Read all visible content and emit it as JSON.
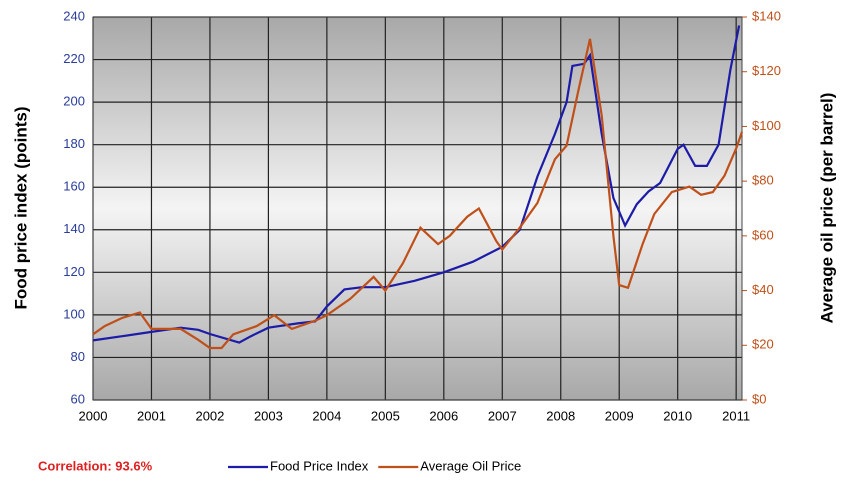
{
  "chart_data": {
    "type": "line",
    "ylabel": "Food price index (points)",
    "y2label": "Average oil price (per barrel)",
    "annotation": "Correlation: 93.6%",
    "xlim": [
      2000,
      2011.1
    ],
    "xticks": [
      2000,
      2001,
      2002,
      2003,
      2004,
      2005,
      2006,
      2007,
      2008,
      2009,
      2010,
      2011
    ],
    "ylim": [
      60,
      240
    ],
    "yticks": [
      60,
      80,
      100,
      120,
      140,
      160,
      180,
      200,
      220,
      240
    ],
    "y2lim": [
      0,
      140
    ],
    "y2ticks": [
      {
        "value": 0,
        "label": "$0"
      },
      {
        "value": 20,
        "label": "$20"
      },
      {
        "value": 40,
        "label": "$40"
      },
      {
        "value": 60,
        "label": "$60"
      },
      {
        "value": 80,
        "label": "$80"
      },
      {
        "value": 100,
        "label": "$100"
      },
      {
        "value": 120,
        "label": "$120"
      },
      {
        "value": 140,
        "label": "$140"
      }
    ],
    "grid": true,
    "legend": "bottom",
    "series": [
      {
        "name": "Food Price Index",
        "color": "#1c1ca8",
        "axis": "y",
        "x": [
          2000.0,
          2000.5,
          2001.0,
          2001.5,
          2001.8,
          2002.0,
          2002.5,
          2002.7,
          2003.0,
          2003.5,
          2003.8,
          2004.0,
          2004.3,
          2004.6,
          2005.0,
          2005.5,
          2006.0,
          2006.5,
          2007.0,
          2007.3,
          2007.6,
          2007.9,
          2008.1,
          2008.2,
          2008.4,
          2008.5,
          2008.7,
          2008.9,
          2009.1,
          2009.3,
          2009.5,
          2009.7,
          2010.0,
          2010.1,
          2010.3,
          2010.5,
          2010.7,
          2010.9,
          2011.05
        ],
        "values": [
          88,
          90,
          92,
          94,
          93,
          91,
          87,
          90,
          94,
          96,
          97,
          104,
          112,
          113,
          113,
          116,
          120,
          125,
          132,
          140,
          165,
          185,
          200,
          217,
          218,
          222,
          185,
          155,
          142,
          152,
          158,
          162,
          178,
          180,
          170,
          170,
          180,
          215,
          236
        ]
      },
      {
        "name": "Average Oil Price",
        "color": "#c0501a",
        "axis": "y2",
        "x": [
          2000.0,
          2000.2,
          2000.5,
          2000.8,
          2001.0,
          2001.5,
          2001.8,
          2002.0,
          2002.2,
          2002.4,
          2002.8,
          2003.1,
          2003.4,
          2003.8,
          2004.0,
          2004.4,
          2004.8,
          2005.0,
          2005.3,
          2005.6,
          2005.9,
          2006.1,
          2006.4,
          2006.6,
          2006.9,
          2007.0,
          2007.3,
          2007.6,
          2007.9,
          2008.1,
          2008.3,
          2008.5,
          2008.7,
          2008.9,
          2009.0,
          2009.15,
          2009.4,
          2009.6,
          2009.9,
          2010.2,
          2010.4,
          2010.6,
          2010.8,
          2011.0,
          2011.1
        ],
        "values": [
          24,
          27,
          30,
          32,
          26,
          26,
          22,
          19,
          19,
          24,
          27,
          31,
          26,
          29,
          31,
          37,
          45,
          40,
          50,
          63,
          57,
          60,
          67,
          70,
          58,
          55,
          63,
          72,
          88,
          93,
          113,
          132,
          104,
          60,
          42,
          41,
          57,
          68,
          76,
          78,
          75,
          76,
          82,
          92,
          98
        ]
      }
    ]
  }
}
